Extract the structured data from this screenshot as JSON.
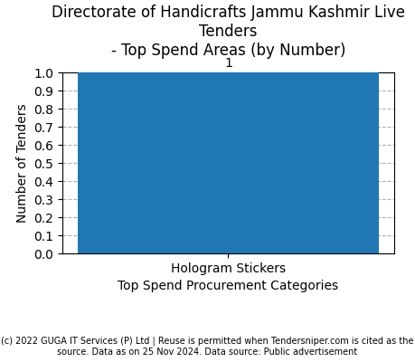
{
  "chart_data": {
    "type": "bar",
    "title": "Directorate of Handicrafts Jammu Kashmir Live Tenders\n- Top Spend Areas (by Number)",
    "x_label": "Top Spend Procurement Categories",
    "y_label": "Number of Tenders",
    "categories": [
      "Hologram Stickers"
    ],
    "values": [
      1
    ],
    "ylim": [
      0.0,
      1.0
    ],
    "yticks": [
      {
        "value": 0.0,
        "label": "0.0"
      },
      {
        "value": 0.1,
        "label": "0.1"
      },
      {
        "value": 0.2,
        "label": "0.2"
      },
      {
        "value": 0.3,
        "label": "0.3"
      },
      {
        "value": 0.4,
        "label": "0.4"
      },
      {
        "value": 0.5,
        "label": "0.5"
      },
      {
        "value": 0.6,
        "label": "0.6"
      },
      {
        "value": 0.7,
        "label": "0.7"
      },
      {
        "value": 0.8,
        "label": "0.8"
      },
      {
        "value": 0.9,
        "label": "0.9"
      },
      {
        "value": 1.0,
        "label": "1.0"
      }
    ],
    "grid": true,
    "data_labels": true,
    "annotations": [
      "(c) 2022 GUGA IT Services (P) Ltd | Reuse is permitted when Tendersniper.com is cited as the\nsource. Data as on 25 Nov 2024. Data source: Public advertisement"
    ]
  }
}
